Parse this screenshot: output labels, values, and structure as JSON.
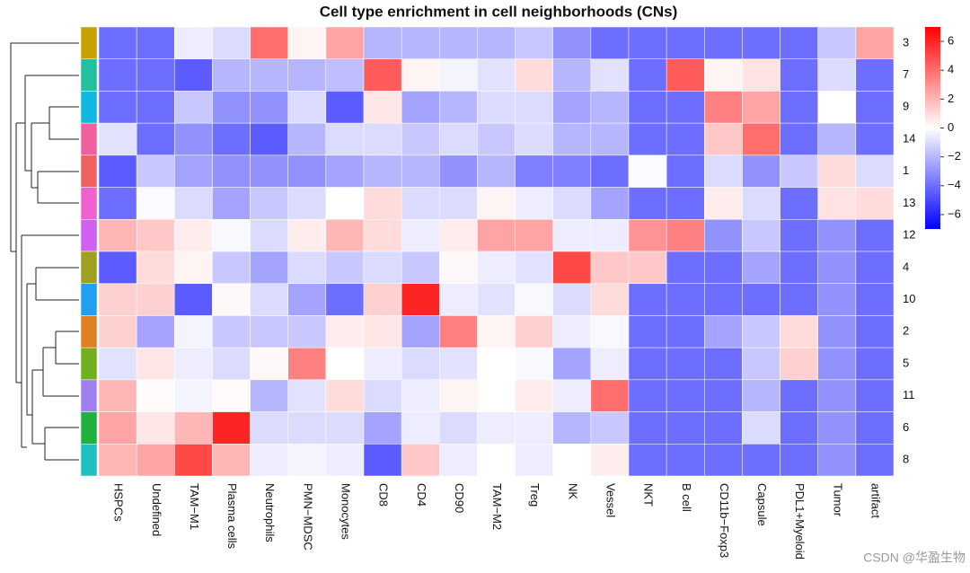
{
  "chart_data": {
    "type": "heatmap",
    "title": "Cell type enrichment in cell neighborhoods (CNs)",
    "columns": [
      "HSPCs",
      "Undefined",
      "TAM−M1",
      "Plasma cells",
      "Neutrophils",
      "PMN−MDSC",
      "Monocytes",
      "CD8",
      "CD4",
      "CD90",
      "TAM−M2",
      "Treg",
      "NK",
      "Vessel",
      "NKT",
      "B cell",
      "CD11b−Foxp3",
      "Capsule",
      "PDL1+Myeloid",
      "Tumor",
      "artifact"
    ],
    "rows": [
      "3",
      "7",
      "9",
      "14",
      "1",
      "13",
      "12",
      "4",
      "10",
      "2",
      "5",
      "11",
      "6",
      "8"
    ],
    "row_colors": [
      "#c8a000",
      "#20c0a0",
      "#10b8e0",
      "#f060a0",
      "#f06060",
      "#f060d0",
      "#d060f0",
      "#a0a020",
      "#20a0f0",
      "#e08020",
      "#70b020",
      "#a080f0",
      "#20b040",
      "#20c0c0"
    ],
    "values": [
      [
        -4,
        -4,
        -0.5,
        -1,
        4,
        0.3,
        2.5,
        -2,
        -2,
        -2,
        -2,
        -1.5,
        -3,
        -4,
        -4,
        -4,
        -4,
        -4,
        -4,
        -1.5,
        2.5
      ],
      [
        -4,
        -4,
        -4.5,
        -2,
        -2,
        -2,
        -1.8,
        4.5,
        0.3,
        -0.3,
        -0.8,
        1,
        -2,
        -0.8,
        -4,
        4.5,
        0.3,
        0.8,
        -4,
        -1,
        -4
      ],
      [
        -4,
        -4,
        -1.5,
        -3,
        -3,
        -1,
        -4.5,
        0.7,
        -2.5,
        -2,
        -1,
        -1,
        -2.5,
        -2,
        -4,
        -4,
        3.5,
        2.5,
        -4,
        0,
        -4
      ],
      [
        -0.8,
        -4,
        -3,
        -4,
        -4.5,
        -2,
        -1,
        -1,
        -1.5,
        -1,
        -1.5,
        -1,
        -2,
        -2,
        -4,
        -4,
        1.5,
        4,
        -4,
        -2,
        -4
      ],
      [
        -4.5,
        -1.5,
        -2.5,
        -3,
        -3,
        -3,
        -2.5,
        -2,
        -2,
        -3,
        -2,
        -3.5,
        -3.5,
        -4,
        -0.1,
        -4,
        -1,
        -3,
        -1.5,
        1,
        -1
      ],
      [
        -4,
        -0.1,
        -1,
        -2.5,
        -1.5,
        -1,
        0,
        1,
        -1,
        -1,
        0.3,
        -0.5,
        -1,
        -2.5,
        -4,
        -4,
        0.5,
        -1,
        -4,
        0.8,
        1
      ],
      [
        2,
        1.5,
        0.5,
        -0.2,
        -1,
        0.5,
        2,
        1,
        -0.5,
        0.5,
        2.5,
        2.5,
        -0.5,
        -0.5,
        3,
        3.5,
        -3,
        -1.5,
        -4,
        -3,
        -4
      ],
      [
        -4.5,
        1,
        0.3,
        -1.5,
        -2.5,
        -1,
        -1.5,
        -1,
        -1.5,
        0.2,
        -0.5,
        -0.8,
        5,
        1.5,
        1.5,
        -4,
        -4,
        -2.5,
        -4,
        -3,
        -4
      ],
      [
        1.3,
        1.3,
        -4.5,
        0.2,
        -1,
        -2.5,
        -4,
        1.3,
        6,
        -0.5,
        -0.8,
        -0.2,
        -1,
        1,
        -4,
        -4,
        -4,
        -4,
        -4,
        -3,
        -4
      ],
      [
        1.3,
        -2.5,
        -0.3,
        -1.5,
        -1.5,
        -1.5,
        0.5,
        0.7,
        -2.5,
        3.5,
        0.3,
        1.3,
        -0.5,
        -0.2,
        -4,
        -4,
        -2.5,
        -1.5,
        1,
        -3,
        -4
      ],
      [
        -0.8,
        0.7,
        -0.5,
        -1,
        0.2,
        3.5,
        0,
        -0.5,
        -1,
        -0.8,
        0,
        -0.2,
        -2.5,
        -0.5,
        -4,
        -4,
        -4,
        -1.5,
        1.3,
        -3,
        -4
      ],
      [
        2,
        0.1,
        -0.3,
        0.1,
        -2,
        -0.8,
        1,
        -1,
        -0.5,
        0.3,
        0,
        0.5,
        -0.5,
        4,
        -4,
        -4,
        -4,
        -2,
        -4,
        -3,
        -4
      ],
      [
        2.5,
        0.7,
        2,
        6,
        -1,
        -1,
        -1,
        -2.5,
        -0.5,
        -1,
        -0.5,
        -0.5,
        -2,
        -1.5,
        -4,
        -4,
        -4,
        -1,
        -4,
        -3,
        -4
      ],
      [
        2,
        2.5,
        5,
        2,
        -0.5,
        -0.3,
        -0.5,
        -4.5,
        1.5,
        -0.5,
        0,
        -0.5,
        0,
        0.5,
        -4,
        -4,
        -4,
        -4,
        -4,
        -3,
        -4
      ]
    ],
    "zlim": [
      -7,
      7
    ],
    "zticks": [
      6,
      4,
      2,
      0,
      {
        "value": -2,
        "label": "−2"
      },
      {
        "value": -4,
        "label": "−4"
      },
      {
        "value": -6,
        "label": "−6"
      }
    ],
    "colors": {
      "low": "#0000ff",
      "mid": "#ffffff",
      "high": "#ff0000"
    },
    "watermark": "CSDN @华盈生物"
  }
}
